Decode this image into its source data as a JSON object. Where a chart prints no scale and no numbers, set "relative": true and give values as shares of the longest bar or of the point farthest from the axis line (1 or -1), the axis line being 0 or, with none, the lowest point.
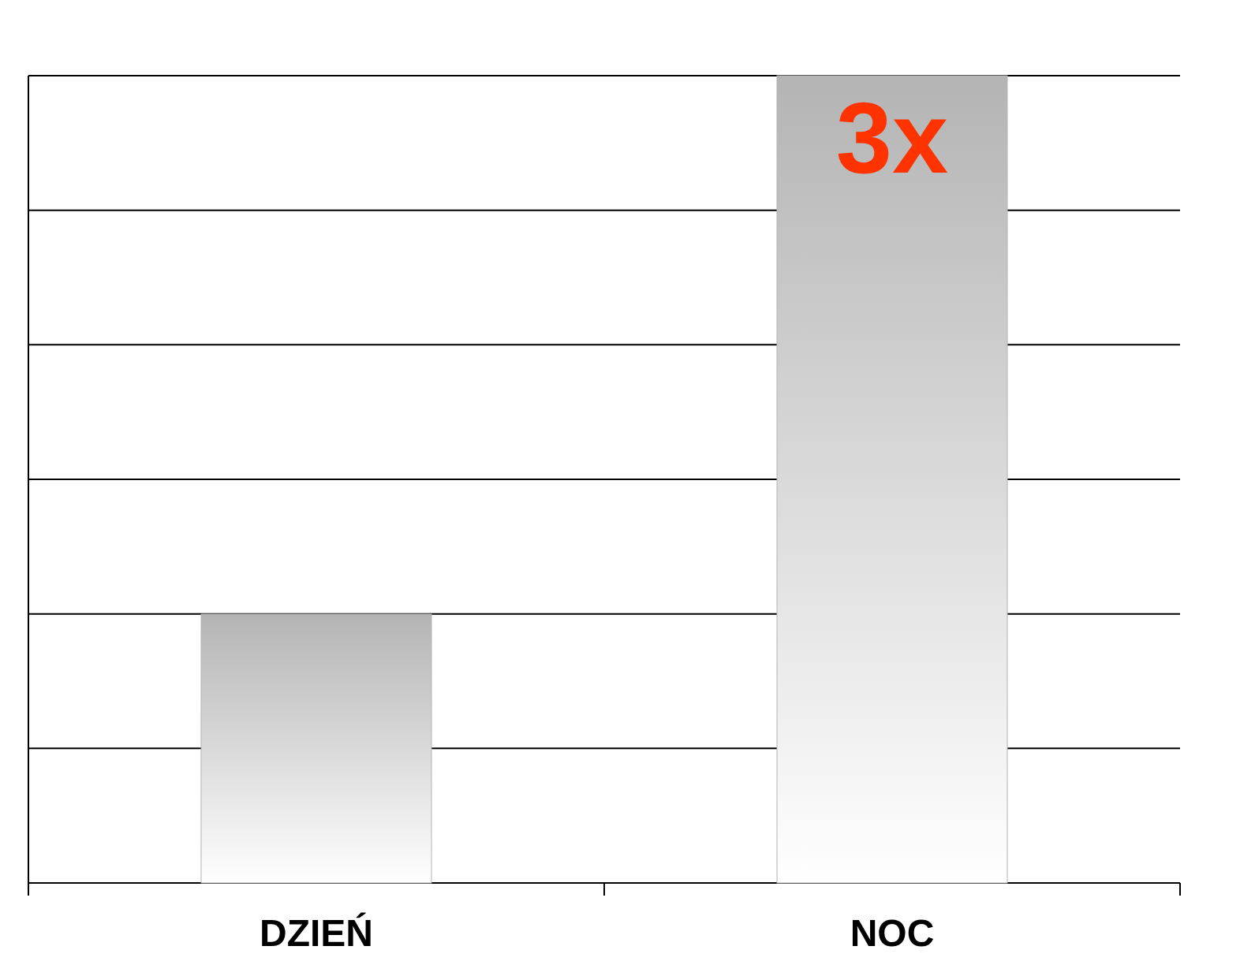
{
  "chart_data": {
    "type": "bar",
    "relative": true,
    "categories": [
      "DZIEŃ",
      "NOC"
    ],
    "values": [
      0.333,
      1
    ],
    "color": "#b4b4b4",
    "grid": true,
    "annotations": [
      "3x"
    ]
  }
}
